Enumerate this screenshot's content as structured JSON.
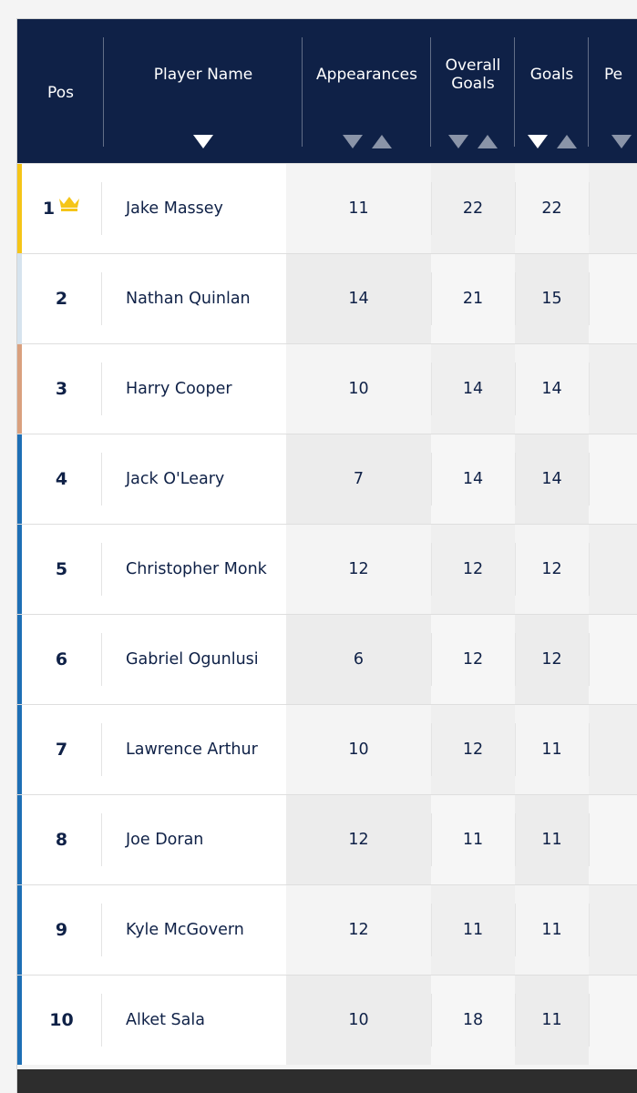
{
  "colors": {
    "header_bg": "#0f2147",
    "text": "#0f2147",
    "gold": "#f5c518",
    "silver": "#d6e3ee",
    "bronze": "#d9a07e",
    "default_stripe": "#1e6fb5"
  },
  "columns": {
    "pos": "Pos",
    "player_name": "Player Name",
    "appearances": "Appearances",
    "overall_goals": "Overall\nGoals",
    "goals": "Goals",
    "penalties_partial": "Pe"
  },
  "icons": {
    "crown": "crown-icon",
    "sort_desc": "sort-descending-icon",
    "sort_asc": "sort-ascending-icon"
  },
  "rows": [
    {
      "pos": "1",
      "name": "Jake Massey",
      "appearances": "11",
      "overall_goals": "22",
      "goals": "22",
      "stripe": "gold",
      "crown": true
    },
    {
      "pos": "2",
      "name": "Nathan Quinlan",
      "appearances": "14",
      "overall_goals": "21",
      "goals": "15",
      "stripe": "silver"
    },
    {
      "pos": "3",
      "name": "Harry Cooper",
      "appearances": "10",
      "overall_goals": "14",
      "goals": "14",
      "stripe": "bronze"
    },
    {
      "pos": "4",
      "name": "Jack O'Leary",
      "appearances": "7",
      "overall_goals": "14",
      "goals": "14",
      "stripe": "default"
    },
    {
      "pos": "5",
      "name": "Christopher Monk",
      "appearances": "12",
      "overall_goals": "12",
      "goals": "12",
      "stripe": "default"
    },
    {
      "pos": "6",
      "name": "Gabriel Ogunlusi",
      "appearances": "6",
      "overall_goals": "12",
      "goals": "12",
      "stripe": "default"
    },
    {
      "pos": "7",
      "name": "Lawrence Arthur",
      "appearances": "10",
      "overall_goals": "12",
      "goals": "11",
      "stripe": "default"
    },
    {
      "pos": "8",
      "name": "Joe Doran",
      "appearances": "12",
      "overall_goals": "11",
      "goals": "11",
      "stripe": "default"
    },
    {
      "pos": "9",
      "name": "Kyle McGovern",
      "appearances": "12",
      "overall_goals": "11",
      "goals": "11",
      "stripe": "default"
    },
    {
      "pos": "10",
      "name": "Alket Sala",
      "appearances": "10",
      "overall_goals": "18",
      "goals": "11",
      "stripe": "default"
    }
  ]
}
